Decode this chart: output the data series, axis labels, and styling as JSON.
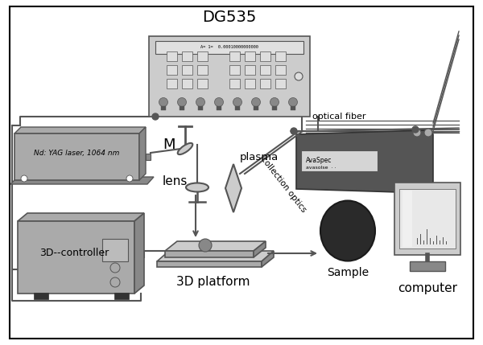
{
  "bg_color": "#ffffff",
  "gray_dark": "#555555",
  "gray_mid": "#888888",
  "gray_light": "#aaaaaa",
  "gray_lighter": "#cccccc",
  "gray_lightest": "#dedede",
  "black": "#000000",
  "white": "#ffffff",
  "dg535_label": "DG535",
  "laser_label": "Nd: YAG laser, 1064 nm",
  "mirror_label": "M",
  "lens_label": "lens",
  "plasma_label": "plasma",
  "collection_label": "collection optics",
  "fiber_label": "optical fiber",
  "spec_label1": "AvaSpec",
  "spec_label2": "avasolse",
  "platform_label": "3D platform",
  "controller_label": "3D--controller",
  "sample_label": "Sample",
  "computer_label": "computer"
}
